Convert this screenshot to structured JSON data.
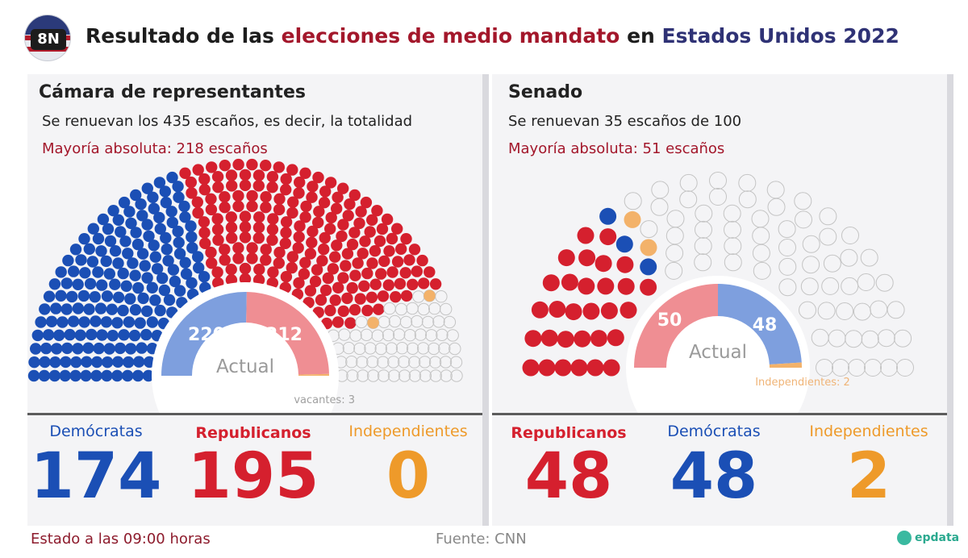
{
  "header": {
    "badge": "8N",
    "title_part1": "Resultado de las ",
    "title_part2": "elecciones de medio mandato",
    "title_part3": " en ",
    "title_part4": "Estados Unidos 2022"
  },
  "colors": {
    "dem": "#1b4fb5",
    "rep": "#d5202e",
    "ind": "#f3b26a",
    "empty_stroke": "#c4c4c4",
    "dem_light": "#7e9fde",
    "rep_light": "#ef8e93",
    "maj": "#a3172b",
    "ind_text": "#ee9a2a"
  },
  "house": {
    "title": "Cámara de representantes",
    "subtitle": "Se renuevan los 435 escaños, es decir, la totalidad",
    "majority": "Mayoría absoluta: 218 escaños",
    "current_label": "Actual",
    "current_dem": "220",
    "current_rep": "212",
    "vacancies": "vacantes: 3",
    "counts": [
      {
        "label": "Demócratas",
        "value": "174",
        "party": "dem"
      },
      {
        "label": "Republicanos",
        "value": "195",
        "party": "rep"
      },
      {
        "label": "Independientes",
        "value": "0",
        "party": "ind"
      }
    ]
  },
  "senate": {
    "title": "Senado",
    "subtitle": "Se renuevan 35 escaños de 100",
    "majority": "Mayoría absoluta: 51 escaños",
    "current_label": "Actual",
    "current_rep": "50",
    "current_dem": "48",
    "independents_note": "Independientes: 2",
    "counts": [
      {
        "label": "Republicanos",
        "value": "48",
        "party": "rep"
      },
      {
        "label": "Demócratas",
        "value": "48",
        "party": "dem"
      },
      {
        "label": "Independientes",
        "value": "2",
        "party": "ind"
      }
    ]
  },
  "chart_data": [
    {
      "type": "parliament",
      "title": "Cámara de representantes",
      "total_seats": 435,
      "series": [
        {
          "name": "Demócratas",
          "values": [
            174
          ]
        },
        {
          "name": "Republicanos",
          "values": [
            195
          ]
        },
        {
          "name": "Independientes",
          "values": [
            0
          ]
        }
      ],
      "current": {
        "dem": 220,
        "rep": 212,
        "vacancies": 3
      }
    },
    {
      "type": "parliament",
      "title": "Senado",
      "total_seats": 100,
      "series": [
        {
          "name": "Republicanos",
          "values": [
            48
          ]
        },
        {
          "name": "Demócratas",
          "values": [
            48
          ]
        },
        {
          "name": "Independientes",
          "values": [
            2
          ]
        }
      ],
      "current": {
        "rep": 50,
        "dem": 48,
        "independents": 2
      }
    }
  ],
  "footer": {
    "status": "Estado a las 09:00 horas",
    "source": "Fuente: CNN",
    "brand": "epdata"
  }
}
